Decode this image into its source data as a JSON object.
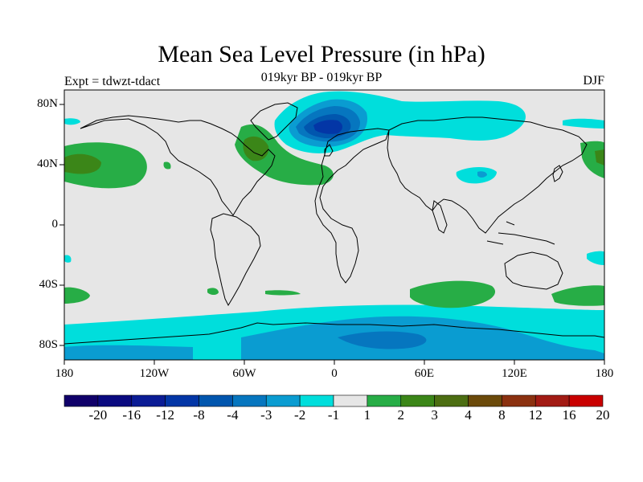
{
  "title": "Mean Sea Level Pressure (in hPa)",
  "subtitle": "019kyr BP - 019kyr BP",
  "expt_label": "Expt = tdwzt-tdact",
  "season": "DJF",
  "lat_labels": [
    "80N",
    "40N",
    "0",
    "40S",
    "80S"
  ],
  "lon_labels": [
    "180",
    "120W",
    "60W",
    "0",
    "60E",
    "120E",
    "180"
  ],
  "colorbar": {
    "labels": [
      "-20",
      "-16",
      "-12",
      "-8",
      "-4",
      "-3",
      "-2",
      "-1",
      "1",
      "2",
      "3",
      "4",
      "8",
      "12",
      "16",
      "20"
    ],
    "colors": [
      "#10006a",
      "#0a0a80",
      "#0b1c95",
      "#0336a6",
      "#0156ae",
      "#0676bf",
      "#0a9cd1",
      "#00dedc",
      "#e6e6e6",
      "#27ad46",
      "#3b8618",
      "#4c6e12",
      "#6b4a0a",
      "#8b3110",
      "#a21b14",
      "#c90000"
    ]
  },
  "colors": {
    "background": "#e6e6e6",
    "coast": "#000000"
  }
}
